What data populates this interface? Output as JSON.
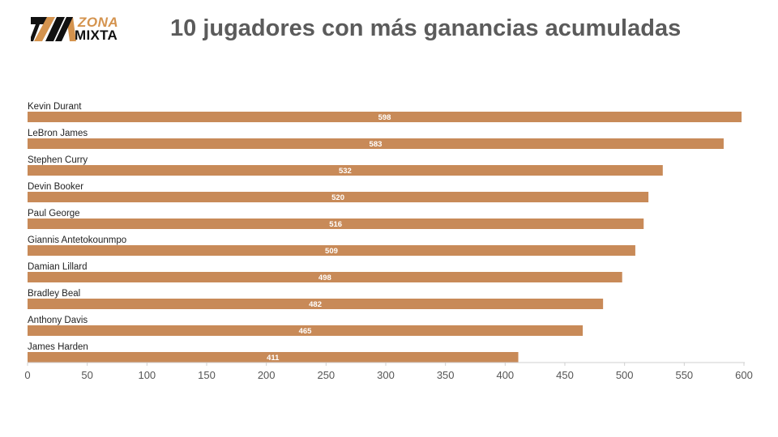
{
  "logo": {
    "top": "ZONA",
    "bottom": "MIXTA",
    "colors": {
      "accent": "#d4934e",
      "dark": "#111111"
    }
  },
  "title": "10 jugadores con más ganancias acumuladas",
  "chart_data": {
    "type": "bar",
    "orientation": "horizontal",
    "categories": [
      "Kevin Durant",
      "LeBron James",
      "Stephen Curry",
      "Devin Booker",
      "Paul George",
      "Giannis Antetokounmpo",
      "Damian Lillard",
      "Bradley Beal",
      "Anthony Davis",
      "James Harden"
    ],
    "values": [
      598,
      583,
      532,
      520,
      516,
      509,
      498,
      482,
      465,
      411
    ],
    "xticks": [
      0,
      50,
      100,
      150,
      200,
      250,
      300,
      350,
      400,
      450,
      500,
      550,
      600
    ],
    "xlim": [
      0,
      600
    ],
    "grid": false,
    "legend": "none",
    "data_labels": true,
    "bar_color": "#c88a58",
    "label_color": "#ffffff"
  }
}
